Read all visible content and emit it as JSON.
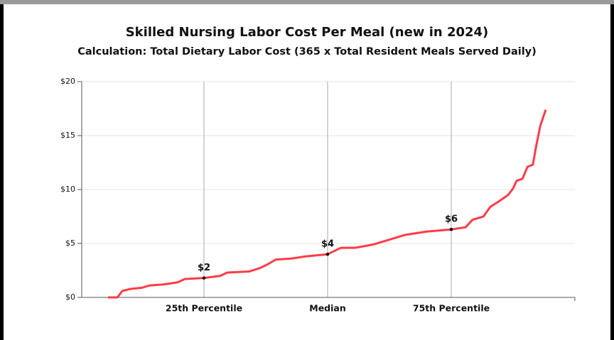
{
  "chart_data": {
    "type": "line",
    "title": "Skilled Nursing Labor Cost Per Meal (new in 2024)",
    "subtitle": "Calculation: Total Dietary Labor Cost (365 x Total Resident Meals Served Daily)",
    "x": [
      5.6,
      7.5,
      8.5,
      10.3,
      12.5,
      13.9,
      16.8,
      19.7,
      21.1,
      25,
      28.3,
      29.7,
      34.1,
      36.2,
      37.6,
      39.5,
      42.7,
      45.5,
      50,
      52.7,
      55.6,
      59.2,
      62.1,
      65.7,
      70,
      75,
      77.9,
      79.3,
      81.5,
      82.9,
      84.3,
      86.5,
      87.5,
      88.2,
      89.4,
      90.4,
      91.5,
      92.2,
      93,
      94.1
    ],
    "series": [
      {
        "color": "#ff3b47",
        "values": [
          0,
          0,
          0.6,
          0.8,
          0.9,
          1.1,
          1.2,
          1.4,
          1.7,
          1.8,
          2.0,
          2.3,
          2.4,
          2.7,
          3.0,
          3.5,
          3.6,
          3.8,
          4.0,
          4.6,
          4.6,
          4.9,
          5.3,
          5.8,
          6.1,
          6.3,
          6.5,
          7.2,
          7.5,
          8.4,
          8.8,
          9.5,
          10.1,
          10.8,
          11.0,
          12.1,
          12.3,
          14.1,
          15.9,
          17.4
        ]
      }
    ],
    "points": {
      "x": [
        25,
        50,
        75
      ],
      "values": [
        1.8,
        4.0,
        6.3
      ],
      "value_labels": [
        "$2",
        "$4",
        "$6"
      ]
    },
    "xlim": [
      0,
      100
    ],
    "xticks": [
      {
        "value": 25,
        "label": "25th Percentile"
      },
      {
        "value": 50,
        "label": "Median"
      },
      {
        "value": 75,
        "label": "75th Percentile"
      }
    ],
    "ylim": [
      0,
      20
    ],
    "yticks": [
      {
        "value": 0,
        "label": "$0"
      },
      {
        "value": 5,
        "label": "$5"
      },
      {
        "value": 10,
        "label": "$10"
      },
      {
        "value": 15,
        "label": "$15"
      },
      {
        "value": 20,
        "label": "$20"
      }
    ],
    "grid": true
  }
}
